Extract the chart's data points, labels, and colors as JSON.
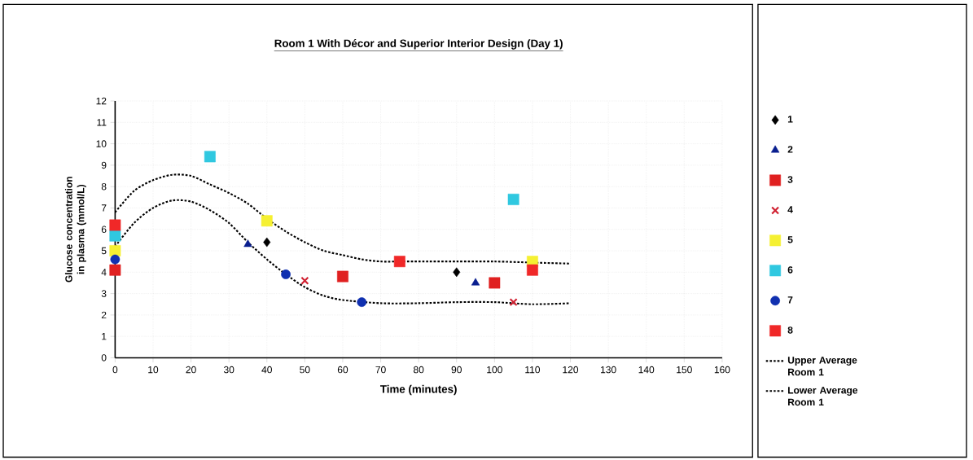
{
  "chart_data": {
    "type": "scatter",
    "title": "Room 1 With Décor and Superior Interior Design (Day 1)",
    "xlabel": "Time (minutes)",
    "ylabel": "Glucose concentration in plasma (mmol/L)",
    "xlim": [
      0,
      160
    ],
    "xticks": [
      0,
      10,
      20,
      30,
      40,
      50,
      60,
      70,
      80,
      90,
      100,
      110,
      120,
      130,
      140,
      150,
      160
    ],
    "ylim": [
      0,
      12
    ],
    "yticks": [
      0,
      1,
      2,
      3,
      4,
      5,
      6,
      7,
      8,
      9,
      10,
      11,
      12
    ],
    "grid": true,
    "legend": "right",
    "series": [
      {
        "name": "1",
        "color": "#000000",
        "marker": "diamond",
        "x": [
          40,
          90
        ],
        "values": [
          5.4,
          4.0
        ]
      },
      {
        "name": "2",
        "color": "#0a1f8f",
        "marker": "triangle",
        "x": [
          35,
          95
        ],
        "values": [
          5.3,
          3.5
        ]
      },
      {
        "name": "3",
        "color": "#e02020",
        "marker": "square",
        "x": [
          0,
          60,
          100
        ],
        "values": [
          4.1,
          3.8,
          3.5
        ]
      },
      {
        "name": "4",
        "color": "#d02030",
        "marker": "cross",
        "x": [
          50,
          105
        ],
        "values": [
          3.6,
          2.6
        ]
      },
      {
        "name": "5",
        "color": "#f5f032",
        "marker": "square",
        "x": [
          0,
          40,
          110
        ],
        "values": [
          5.0,
          6.4,
          4.5
        ]
      },
      {
        "name": "6",
        "color": "#30c8e0",
        "marker": "square",
        "x": [
          0,
          25,
          105
        ],
        "values": [
          5.7,
          9.4,
          7.4
        ]
      },
      {
        "name": "7",
        "color": "#1030b0",
        "marker": "circle",
        "x": [
          0,
          45,
          65
        ],
        "values": [
          4.6,
          3.9,
          2.6
        ]
      },
      {
        "name": "8",
        "color": "#f02828",
        "marker": "square",
        "x": [
          0,
          75,
          110
        ],
        "values": [
          6.2,
          4.5,
          4.1
        ]
      },
      {
        "name": "Upper Average Room 1",
        "type": "line",
        "color": "#000000",
        "line_style": "dashed",
        "marker": "none",
        "x": [
          0,
          5,
          10,
          15,
          20,
          25,
          30,
          35,
          40,
          45,
          50,
          55,
          60,
          65,
          70,
          75,
          80,
          90,
          100,
          110,
          120
        ],
        "values": [
          6.8,
          7.8,
          8.3,
          8.55,
          8.5,
          8.1,
          7.7,
          7.2,
          6.5,
          5.9,
          5.4,
          5.0,
          4.8,
          4.6,
          4.5,
          4.5,
          4.5,
          4.5,
          4.5,
          4.45,
          4.4
        ]
      },
      {
        "name": "Lower Average Room 1",
        "type": "line",
        "color": "#000000",
        "line_style": "dashed",
        "marker": "none",
        "x": [
          0,
          5,
          10,
          15,
          20,
          25,
          30,
          35,
          40,
          45,
          50,
          55,
          60,
          70,
          80,
          90,
          100,
          110,
          120
        ],
        "values": [
          5.2,
          6.3,
          7.0,
          7.35,
          7.3,
          6.9,
          6.3,
          5.4,
          4.6,
          3.9,
          3.3,
          2.9,
          2.7,
          2.55,
          2.55,
          2.6,
          2.6,
          2.5,
          2.55
        ]
      }
    ]
  }
}
